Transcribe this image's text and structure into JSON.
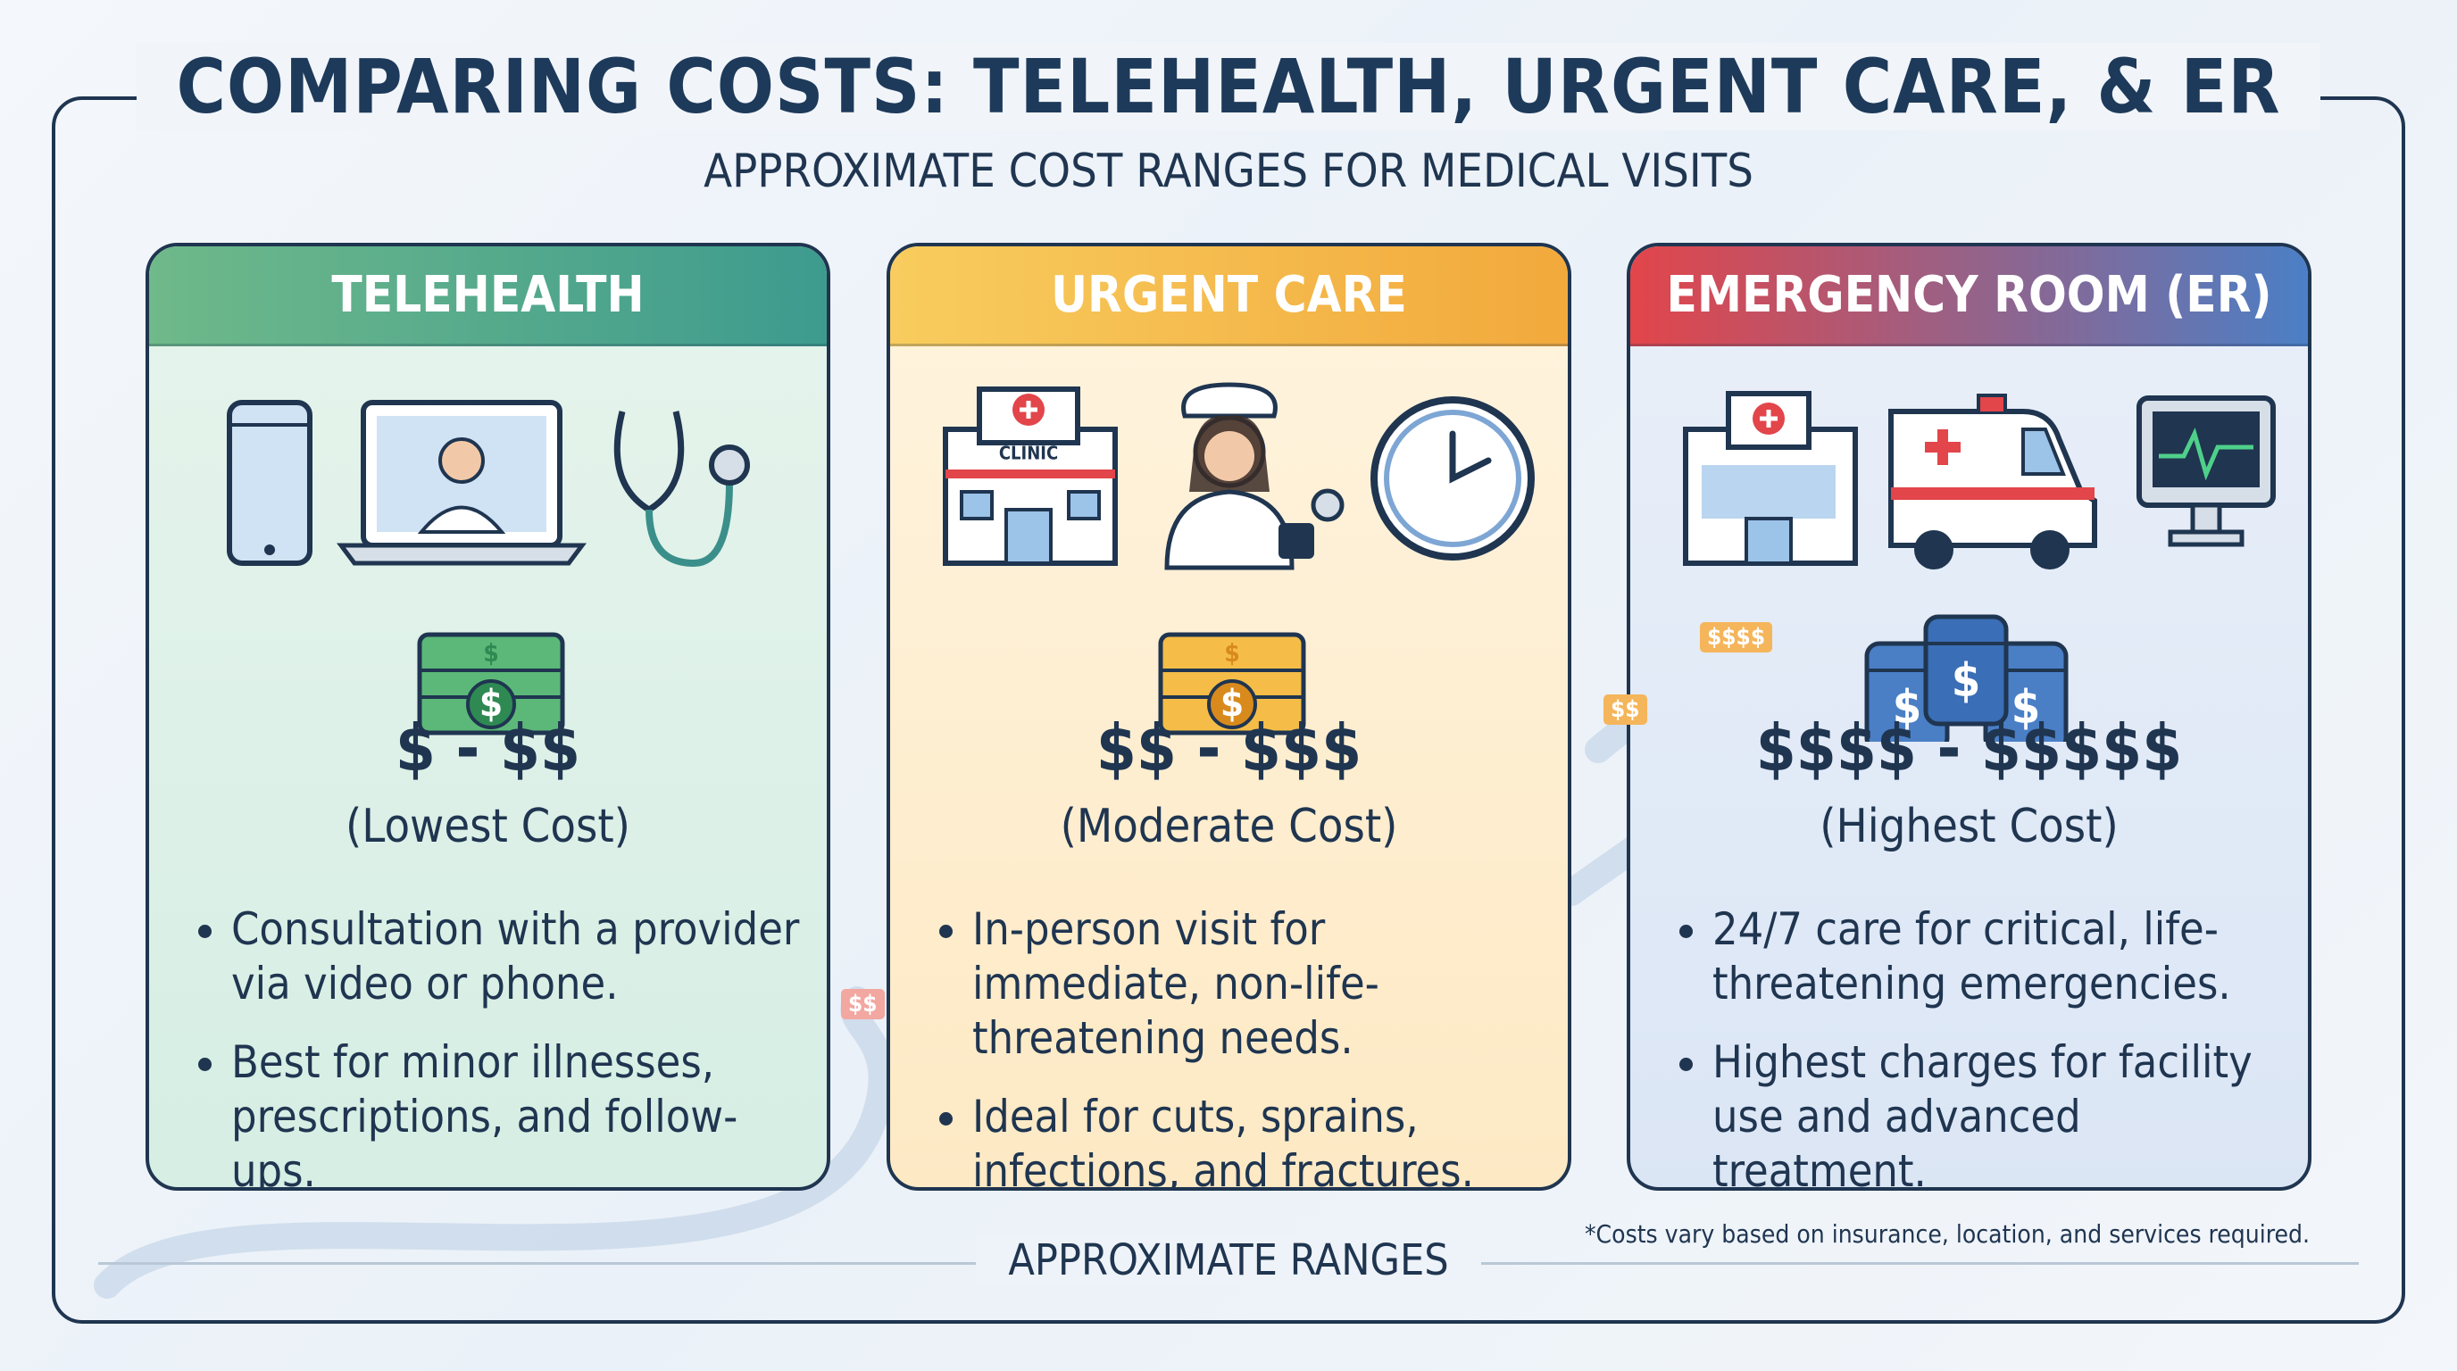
{
  "header": {
    "title": "COMPARING COSTS: TELEHEALTH, URGENT CARE, & ER",
    "subtitle": "APPROXIMATE COST RANGES FOR MEDICAL VISITS"
  },
  "cards": [
    {
      "title": "TELEHEALTH",
      "cost": "$ - $$",
      "cost_label": "(Lowest Cost)",
      "bullets": [
        "Consultation with a provider via video or phone.",
        "Best for minor illnesses, prescriptions, and follow-ups."
      ]
    },
    {
      "title": "URGENT CARE",
      "icon_text": "CLINIC",
      "cost": "$$ - $$$",
      "cost_label": "(Moderate Cost)",
      "bullets": [
        "In-person visit for immediate, non-life-threatening needs.",
        "Ideal for cuts, sprains, infections, and fractures."
      ]
    },
    {
      "title": "EMERGENCY ROOM (ER)",
      "cost": "$$$$ - $$$$$",
      "cost_label": "(Highest Cost)",
      "bullets": [
        "24/7 care for critical, life-threatening emergencies.",
        "Highest charges for facility use and advanced treatment."
      ]
    }
  ],
  "bill_symbol": "$",
  "road_tags": [
    "$$",
    "$$",
    "$$$$"
  ],
  "footer": {
    "label": "APPROXIMATE RANGES",
    "note": "*Costs vary based on insurance, location, and services required."
  }
}
